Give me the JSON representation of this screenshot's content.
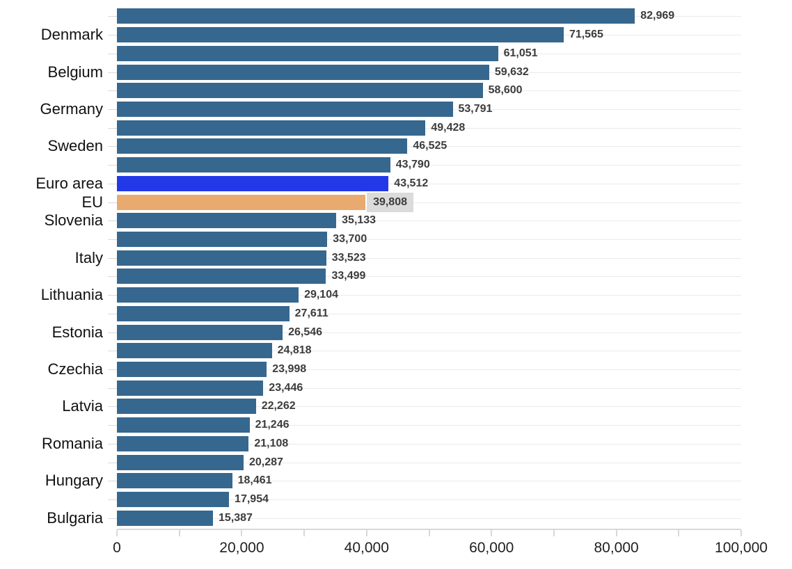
{
  "chart_data": {
    "type": "bar",
    "orientation": "horizontal",
    "title": "",
    "xlabel": "",
    "ylabel": "",
    "xlim": [
      0,
      100000
    ],
    "grid": "horizontal-per-category",
    "x_minor_tick_step": 10000,
    "x_tick_labels": [
      {
        "value": 0,
        "label": "0"
      },
      {
        "value": 20000,
        "label": "20,000"
      },
      {
        "value": 40000,
        "label": "40,000"
      },
      {
        "value": 60000,
        "label": "60,000"
      },
      {
        "value": 80000,
        "label": "80,000"
      },
      {
        "value": 100000,
        "label": "100,000"
      }
    ],
    "rows": [
      {
        "label": "",
        "value": 82969,
        "value_label": "82,969",
        "role": "default"
      },
      {
        "label": "Denmark",
        "value": 71565,
        "value_label": "71,565",
        "role": "default"
      },
      {
        "label": "",
        "value": 61051,
        "value_label": "61,051",
        "role": "default"
      },
      {
        "label": "Belgium",
        "value": 59632,
        "value_label": "59,632",
        "role": "default"
      },
      {
        "label": "",
        "value": 58600,
        "value_label": "58,600",
        "role": "default"
      },
      {
        "label": "Germany",
        "value": 53791,
        "value_label": "53,791",
        "role": "default"
      },
      {
        "label": "",
        "value": 49428,
        "value_label": "49,428",
        "role": "default"
      },
      {
        "label": "Sweden",
        "value": 46525,
        "value_label": "46,525",
        "role": "default"
      },
      {
        "label": "",
        "value": 43790,
        "value_label": "43,790",
        "role": "default"
      },
      {
        "label": "Euro area",
        "value": 43512,
        "value_label": "43,512",
        "role": "euro-area"
      },
      {
        "label": "EU",
        "value": 39808,
        "value_label": "39,808",
        "role": "eu"
      },
      {
        "label": "Slovenia",
        "value": 35133,
        "value_label": "35,133",
        "role": "default"
      },
      {
        "label": "",
        "value": 33700,
        "value_label": "33,700",
        "role": "default"
      },
      {
        "label": "Italy",
        "value": 33523,
        "value_label": "33,523",
        "role": "default"
      },
      {
        "label": "",
        "value": 33499,
        "value_label": "33,499",
        "role": "default"
      },
      {
        "label": "Lithuania",
        "value": 29104,
        "value_label": "29,104",
        "role": "default"
      },
      {
        "label": "",
        "value": 27611,
        "value_label": "27,611",
        "role": "default"
      },
      {
        "label": "Estonia",
        "value": 26546,
        "value_label": "26,546",
        "role": "default"
      },
      {
        "label": "",
        "value": 24818,
        "value_label": "24,818",
        "role": "default"
      },
      {
        "label": "Czechia",
        "value": 23998,
        "value_label": "23,998",
        "role": "default"
      },
      {
        "label": "",
        "value": 23446,
        "value_label": "23,446",
        "role": "default"
      },
      {
        "label": "Latvia",
        "value": 22262,
        "value_label": "22,262",
        "role": "default"
      },
      {
        "label": "",
        "value": 21246,
        "value_label": "21,246",
        "role": "default"
      },
      {
        "label": "Romania",
        "value": 21108,
        "value_label": "21,108",
        "role": "default"
      },
      {
        "label": "",
        "value": 20287,
        "value_label": "20,287",
        "role": "default"
      },
      {
        "label": "Hungary",
        "value": 18461,
        "value_label": "18,461",
        "role": "default"
      },
      {
        "label": "",
        "value": 17954,
        "value_label": "17,954",
        "role": "default"
      },
      {
        "label": "Bulgaria",
        "value": 15387,
        "value_label": "15,387",
        "role": "default"
      }
    ],
    "colors": {
      "bar_default": "#36678F",
      "bar_euro_area": "#2339E8",
      "bar_eu": "#E9AA70",
      "eu_value_background": "#DBDBDB",
      "value_text": "#3C3C3C",
      "category_text": "#111111",
      "gridline": "#EAEAEA",
      "axis_line": "#D8D8D8"
    },
    "legend": null
  }
}
